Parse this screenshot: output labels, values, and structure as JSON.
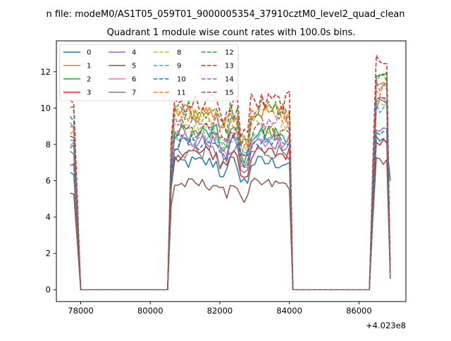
{
  "chart_data": {
    "type": "line",
    "suptitle": "n file: modeM0/AS1T05_059T01_9000005354_37910cztM0_level2_quad_clean",
    "title": "Quadrant 1 module wise count rates with 100.0s bins.",
    "xlabel": "",
    "ylabel": "",
    "x_offset_label": "+4.023e8",
    "xlim": [
      77300,
      87350
    ],
    "ylim": [
      -0.65,
      13.7
    ],
    "x_ticks": [
      78000,
      80000,
      82000,
      84000,
      86000
    ],
    "x_tick_labels": [
      "78000",
      "80000",
      "82000",
      "84000",
      "86000"
    ],
    "y_ticks": [
      0,
      2,
      4,
      6,
      8,
      10,
      12
    ],
    "y_tick_labels": [
      "0",
      "2",
      "4",
      "6",
      "8",
      "10",
      "12"
    ],
    "grid": false,
    "legend_position": "top-left",
    "segments": [
      {
        "x_start": 77700,
        "x_end": 78000
      },
      {
        "x_start": 80500,
        "x_end": 84100
      },
      {
        "x_start": 86300,
        "x_end": 86900
      }
    ],
    "series": [
      {
        "name": "0",
        "color": "#1f77b4",
        "style": "solid",
        "levels": [
          6.4,
          7.0,
          8.2,
          6.0
        ]
      },
      {
        "name": "1",
        "color": "#ff7f0e",
        "style": "solid",
        "levels": [
          8.6,
          9.8,
          11.3,
          0.9
        ]
      },
      {
        "name": "2",
        "color": "#2ca02c",
        "style": "solid",
        "levels": [
          7.8,
          8.6,
          11.6,
          0.8
        ]
      },
      {
        "name": "3",
        "color": "#d62728",
        "style": "solid",
        "levels": [
          6.8,
          7.5,
          8.2,
          0.8
        ]
      },
      {
        "name": "4",
        "color": "#9467bd",
        "style": "solid",
        "levels": [
          7.0,
          8.1,
          8.8,
          0.8
        ]
      },
      {
        "name": "5",
        "color": "#8c564b",
        "style": "solid",
        "levels": [
          5.3,
          5.8,
          7.1,
          0.6
        ]
      },
      {
        "name": "6",
        "color": "#e377c2",
        "style": "solid",
        "levels": [
          8.0,
          8.3,
          10.5,
          0.9
        ]
      },
      {
        "name": "7",
        "color": "#7f7f7f",
        "style": "solid",
        "levels": [
          7.5,
          7.6,
          10.2,
          0.8
        ]
      },
      {
        "name": "8",
        "color": "#bcbd22",
        "style": "dashed",
        "levels": [
          8.8,
          8.9,
          10.4,
          0.8
        ]
      },
      {
        "name": "9",
        "color": "#17becf",
        "style": "dashed",
        "levels": [
          8.2,
          8.6,
          10.0,
          0.8
        ]
      },
      {
        "name": "10",
        "color": "#1f77b4",
        "style": "dashed",
        "levels": [
          9.4,
          8.1,
          8.5,
          0.8
        ]
      },
      {
        "name": "11",
        "color": "#ff7f0e",
        "style": "dashed",
        "levels": [
          9.0,
          9.7,
          11.0,
          0.9
        ]
      },
      {
        "name": "12",
        "color": "#2ca02c",
        "style": "dashed",
        "levels": [
          9.9,
          9.9,
          11.6,
          0.9
        ]
      },
      {
        "name": "13",
        "color": "#d62728",
        "style": "dashed",
        "levels": [
          10.4,
          10.3,
          12.7,
          0.9
        ]
      },
      {
        "name": "14",
        "color": "#9467bd",
        "style": "dashed",
        "levels": [
          9.1,
          9.2,
          11.2,
          0.8
        ]
      },
      {
        "name": "15",
        "color": "#8c564b",
        "style": "dashed",
        "levels": [
          8.3,
          8.7,
          10.6,
          0.8
        ]
      }
    ]
  }
}
